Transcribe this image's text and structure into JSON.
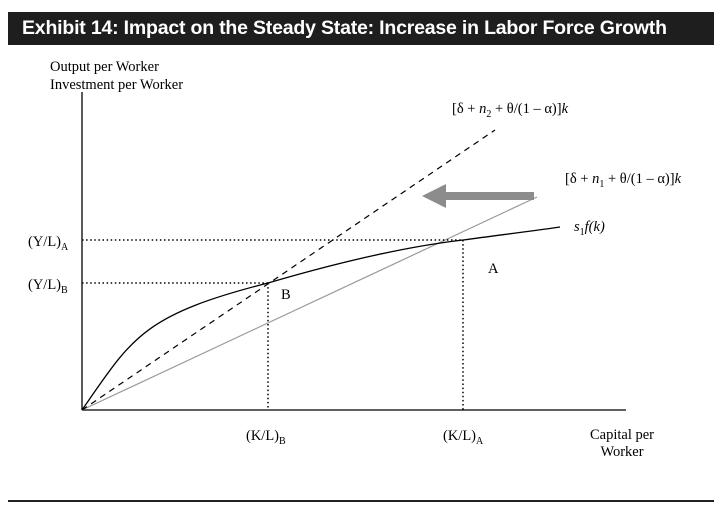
{
  "exhibit": {
    "title": "Exhibit 14: Impact on the Steady State: Increase in Labor Force Growth"
  },
  "axes": {
    "y_label_line1": "Output per Worker",
    "y_label_line2": "Investment per Worker",
    "x_label_line1": "Capital per",
    "x_label_line2": "Worker"
  },
  "curves": {
    "n2_line": {
      "label_pre": "[δ + ",
      "label_var": "n",
      "label_sub": "2",
      "label_post": " + θ/(1 – α)]",
      "label_k": "k"
    },
    "n1_line": {
      "label_pre": "[δ + ",
      "label_var": "n",
      "label_sub": "1",
      "label_post": " + θ/(1 – α)]",
      "label_k": "k"
    },
    "production": {
      "label_s": "s",
      "label_sub": "1",
      "label_post": "f(k)"
    }
  },
  "points": {
    "A": {
      "name": "A",
      "y_label": "(Y/L)",
      "y_sub": "A",
      "x_label": "(K/L)",
      "x_sub": "A"
    },
    "B": {
      "name": "B",
      "y_label": "(Y/L)",
      "y_sub": "B",
      "x_label": "(K/L)",
      "x_sub": "B"
    }
  },
  "colors": {
    "arrow": "#8c8c8c",
    "n1_line": "#9a9a9a",
    "banner": "#1e1e1e"
  }
}
